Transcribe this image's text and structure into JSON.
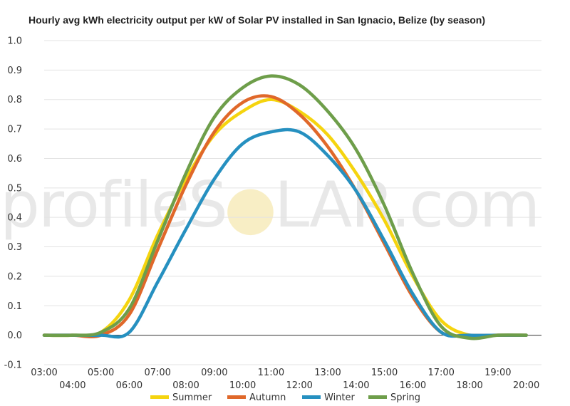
{
  "watermark": {
    "before": "profileS",
    "sun_letter": "O",
    "after": "LAR.com",
    "sun_color": "#f6eab7"
  },
  "chart_data": {
    "type": "line",
    "title": "Hourly avg kWh electricity output per kW of Solar PV installed in San Ignacio, Belize (by season)",
    "xlabel": "",
    "ylabel": "",
    "ylim": [
      -0.1,
      1.0
    ],
    "yticks": [
      "-0.1",
      "0.0",
      "0.1",
      "0.2",
      "0.3",
      "0.4",
      "0.5",
      "0.6",
      "0.7",
      "0.8",
      "0.9",
      "1.0"
    ],
    "x": [
      "03:00",
      "04:00",
      "05:00",
      "06:00",
      "07:00",
      "08:00",
      "09:00",
      "10:00",
      "11:00",
      "12:00",
      "13:00",
      "14:00",
      "15:00",
      "16:00",
      "17:00",
      "18:00",
      "19:00",
      "20:00"
    ],
    "grid": true,
    "legend_position": "bottom",
    "series": [
      {
        "name": "Summer",
        "color": "#f5d40f",
        "values": [
          0.0,
          0.0,
          0.01,
          0.12,
          0.34,
          0.53,
          0.68,
          0.76,
          0.8,
          0.76,
          0.68,
          0.55,
          0.39,
          0.2,
          0.05,
          0.0,
          0.0,
          0.0
        ]
      },
      {
        "name": "Autumn",
        "color": "#e0682a",
        "values": [
          0.0,
          0.0,
          0.0,
          0.07,
          0.29,
          0.51,
          0.69,
          0.79,
          0.81,
          0.75,
          0.64,
          0.49,
          0.31,
          0.13,
          0.01,
          0.0,
          0.0,
          0.0
        ]
      },
      {
        "name": "Winter",
        "color": "#2690c0",
        "values": [
          0.0,
          0.0,
          0.0,
          0.01,
          0.18,
          0.36,
          0.53,
          0.65,
          0.69,
          0.69,
          0.61,
          0.49,
          0.32,
          0.14,
          0.01,
          0.0,
          0.0,
          0.0
        ]
      },
      {
        "name": "Spring",
        "color": "#6e9e4a",
        "values": [
          0.0,
          0.0,
          0.01,
          0.09,
          0.32,
          0.55,
          0.74,
          0.84,
          0.88,
          0.85,
          0.76,
          0.63,
          0.44,
          0.21,
          0.03,
          -0.01,
          0.0,
          0.0
        ]
      }
    ]
  }
}
